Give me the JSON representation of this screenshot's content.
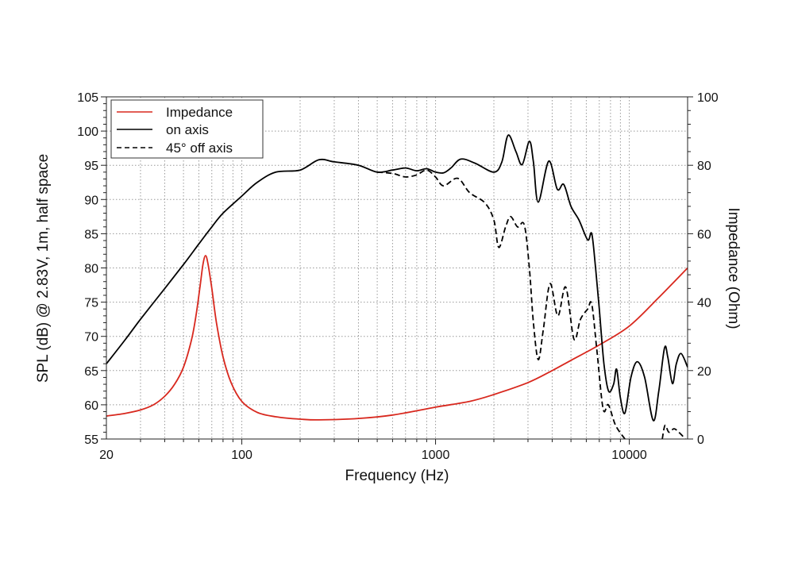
{
  "chart_data": {
    "type": "line",
    "xlabel": "Frequency (Hz)",
    "ylabel": "SPL (dB) @ 2.83V, 1m, half space",
    "y2label": "Impedance (Ohm)",
    "xscale": "log",
    "xlim": [
      20,
      20000
    ],
    "ylim": [
      55,
      105
    ],
    "y2lim": [
      0,
      100
    ],
    "xticks": [
      20,
      100,
      1000,
      10000
    ],
    "xtick_labels": [
      "20",
      "100",
      "1000",
      "10000"
    ],
    "yticks": [
      55,
      60,
      65,
      70,
      75,
      80,
      85,
      90,
      95,
      100,
      105
    ],
    "ytick_labels": [
      "55",
      "60",
      "65",
      "70",
      "75",
      "80",
      "85",
      "90",
      "95",
      "100",
      "105"
    ],
    "y2ticks": [
      0,
      20,
      40,
      60,
      80,
      100
    ],
    "y2tick_labels": [
      "0",
      "20",
      "40",
      "60",
      "80",
      "100"
    ],
    "grid": true,
    "legend_position": "top-left",
    "series": [
      {
        "name": "Impedance",
        "axis": "right",
        "color": "#d8281e",
        "style": "solid",
        "points": [
          [
            20,
            6.7
          ],
          [
            25,
            7.5
          ],
          [
            30,
            8.5
          ],
          [
            35,
            10
          ],
          [
            40,
            12.5
          ],
          [
            45,
            16
          ],
          [
            50,
            21
          ],
          [
            55,
            29
          ],
          [
            58,
            36
          ],
          [
            61,
            45
          ],
          [
            63,
            51
          ],
          [
            65,
            53.6
          ],
          [
            67,
            51
          ],
          [
            70,
            44
          ],
          [
            74,
            34
          ],
          [
            80,
            24
          ],
          [
            88,
            16.5
          ],
          [
            100,
            11
          ],
          [
            120,
            7.8
          ],
          [
            150,
            6.5
          ],
          [
            200,
            5.8
          ],
          [
            250,
            5.6
          ],
          [
            400,
            6
          ],
          [
            600,
            7
          ],
          [
            1000,
            9.3
          ],
          [
            1500,
            11
          ],
          [
            2000,
            13
          ],
          [
            3000,
            16.5
          ],
          [
            4000,
            20
          ],
          [
            5000,
            23
          ],
          [
            7000,
            27.5
          ],
          [
            10000,
            33
          ],
          [
            14000,
            41
          ],
          [
            20000,
            50
          ]
        ]
      },
      {
        "name": "on axis",
        "axis": "left",
        "color": "#000000",
        "style": "solid",
        "points": [
          [
            20,
            66
          ],
          [
            25,
            69.5
          ],
          [
            30,
            72.5
          ],
          [
            40,
            77
          ],
          [
            50,
            80.5
          ],
          [
            60,
            83.5
          ],
          [
            70,
            86
          ],
          [
            80,
            88
          ],
          [
            100,
            90.5
          ],
          [
            120,
            92.5
          ],
          [
            150,
            94
          ],
          [
            200,
            94.3
          ],
          [
            250,
            95.8
          ],
          [
            300,
            95.5
          ],
          [
            400,
            95
          ],
          [
            500,
            94
          ],
          [
            600,
            94.3
          ],
          [
            700,
            94.6
          ],
          [
            800,
            94.2
          ],
          [
            900,
            94.5
          ],
          [
            1000,
            94
          ],
          [
            1100,
            93.9
          ],
          [
            1200,
            94.6
          ],
          [
            1350,
            95.9
          ],
          [
            1600,
            95.3
          ],
          [
            2000,
            94
          ],
          [
            2200,
            95.5
          ],
          [
            2370,
            99.4
          ],
          [
            2600,
            97
          ],
          [
            2800,
            95.1
          ],
          [
            3050,
            98.5
          ],
          [
            3200,
            95.5
          ],
          [
            3390,
            89.6
          ],
          [
            3840,
            95.6
          ],
          [
            4250,
            91.5
          ],
          [
            4590,
            92.2
          ],
          [
            5000,
            89
          ],
          [
            5500,
            87
          ],
          [
            6100,
            84.1
          ],
          [
            6400,
            85
          ],
          [
            6700,
            80
          ],
          [
            7000,
            74
          ],
          [
            7400,
            66
          ],
          [
            7820,
            62
          ],
          [
            8300,
            63
          ],
          [
            8600,
            65.2
          ],
          [
            9000,
            61
          ],
          [
            9500,
            58.8
          ],
          [
            10200,
            64
          ],
          [
            11000,
            66.3
          ],
          [
            12000,
            64
          ],
          [
            13300,
            57.7
          ],
          [
            14200,
            62
          ],
          [
            15200,
            68.3
          ],
          [
            15800,
            67
          ],
          [
            16700,
            63.1
          ],
          [
            17500,
            66
          ],
          [
            18500,
            67.5
          ],
          [
            20000,
            65.5
          ]
        ]
      },
      {
        "name": "45° off axis",
        "axis": "left",
        "color": "#000000",
        "style": "dashed",
        "points": [
          [
            500,
            94
          ],
          [
            600,
            93.8
          ],
          [
            700,
            93.3
          ],
          [
            800,
            93.6
          ],
          [
            900,
            94.3
          ],
          [
            1000,
            93.3
          ],
          [
            1100,
            92
          ],
          [
            1300,
            93.1
          ],
          [
            1500,
            91
          ],
          [
            1800,
            89.5
          ],
          [
            2000,
            87
          ],
          [
            2120,
            83
          ],
          [
            2300,
            86
          ],
          [
            2440,
            87.5
          ],
          [
            2650,
            86
          ],
          [
            2870,
            86.3
          ],
          [
            3050,
            80
          ],
          [
            3200,
            72
          ],
          [
            3390,
            66.6
          ],
          [
            3600,
            71
          ],
          [
            3900,
            77.7
          ],
          [
            4280,
            73
          ],
          [
            4700,
            77.2
          ],
          [
            5180,
            69.6
          ],
          [
            5600,
            72.5
          ],
          [
            6100,
            74
          ],
          [
            6400,
            74.7
          ],
          [
            6800,
            68
          ],
          [
            7330,
            59.4
          ],
          [
            7800,
            60
          ],
          [
            8500,
            57
          ],
          [
            9500,
            55
          ],
          null,
          [
            14800,
            55
          ],
          [
            15300,
            57
          ],
          [
            16000,
            56
          ],
          [
            17000,
            56.5
          ],
          [
            18000,
            56
          ],
          [
            19500,
            55
          ]
        ]
      }
    ]
  }
}
